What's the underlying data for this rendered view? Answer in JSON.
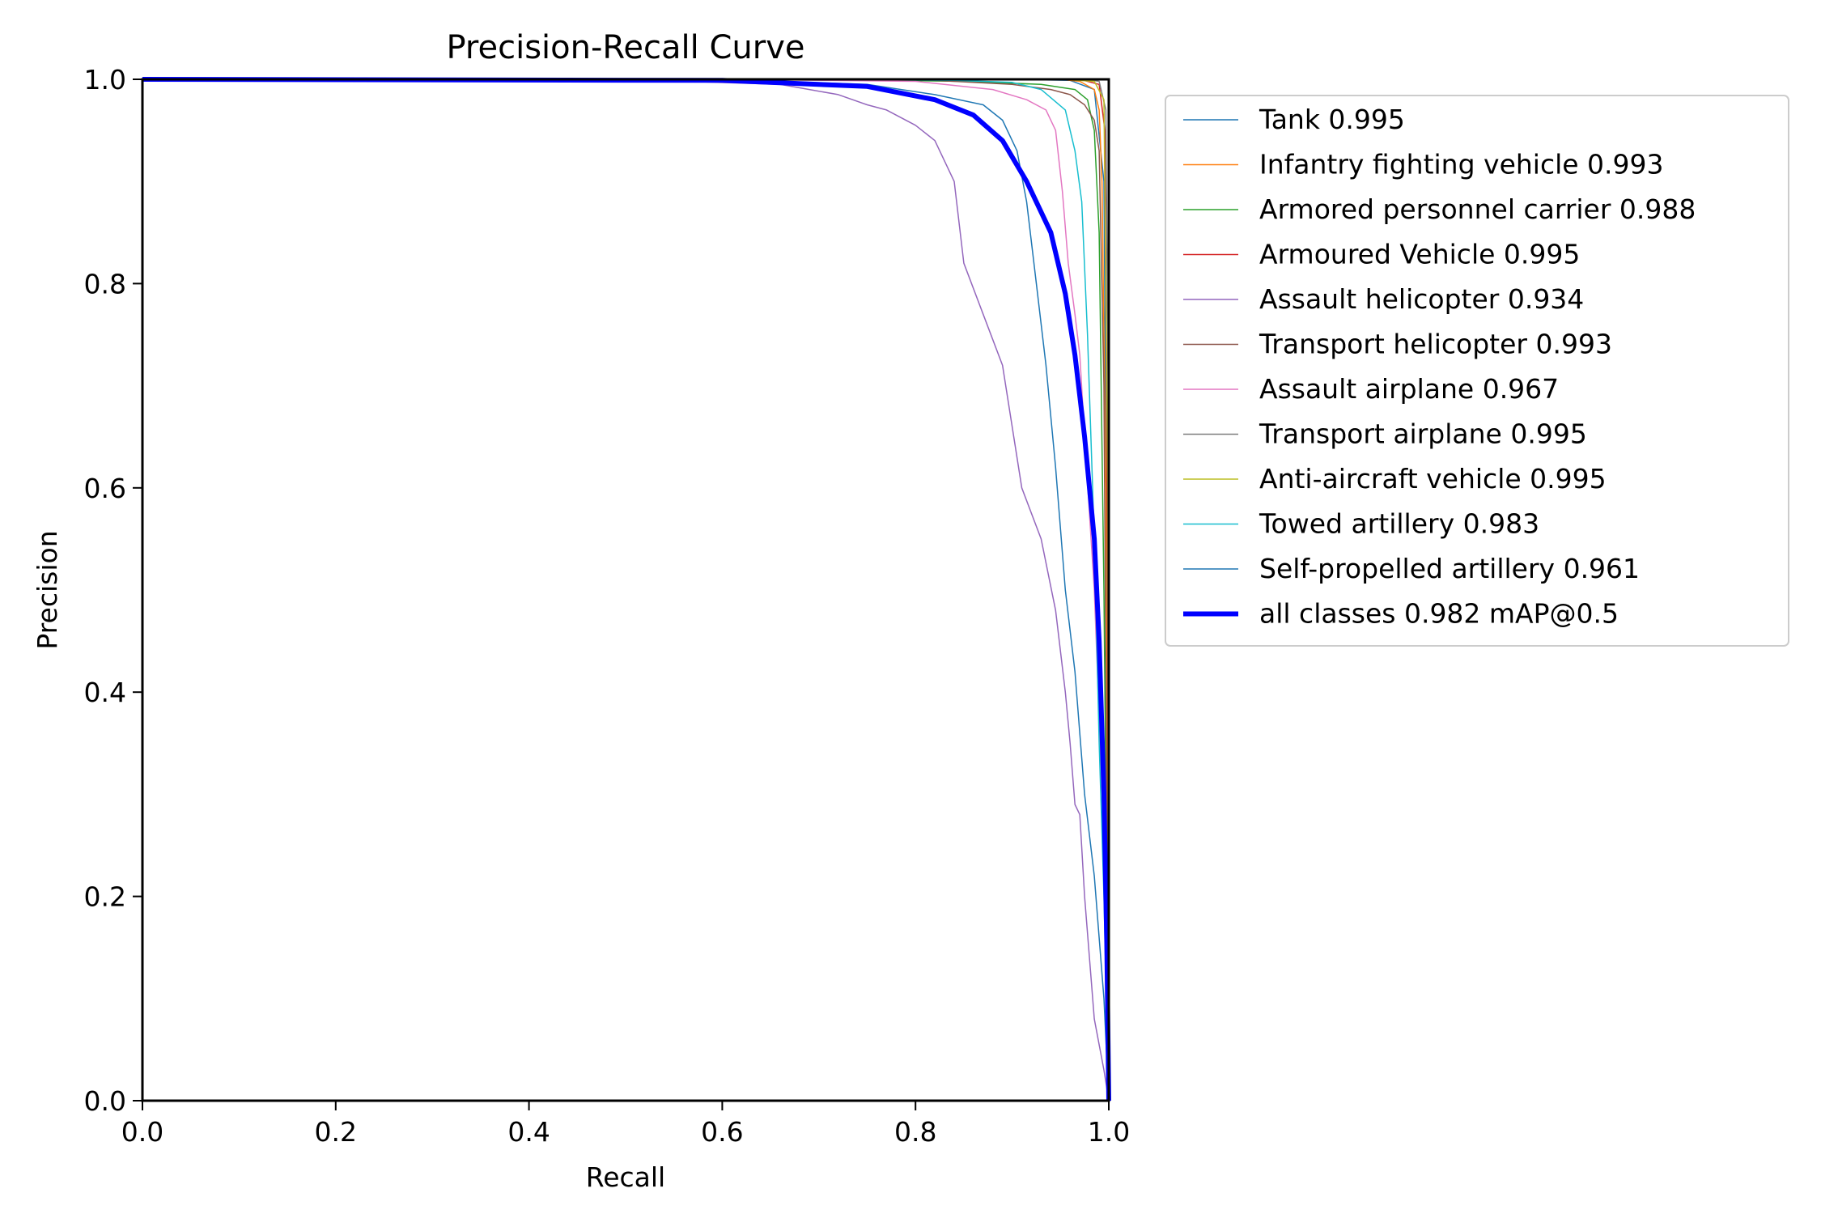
{
  "chart_data": {
    "type": "line",
    "title": "Precision-Recall Curve",
    "xlabel": "Recall",
    "ylabel": "Precision",
    "xlim": [
      0.0,
      1.0
    ],
    "ylim": [
      0.0,
      1.0
    ],
    "xticks": [
      "0.0",
      "0.2",
      "0.4",
      "0.6",
      "0.8",
      "1.0"
    ],
    "yticks": [
      "0.0",
      "0.2",
      "0.4",
      "0.6",
      "0.8",
      "1.0"
    ],
    "grid": false,
    "legend_position": "outside-right",
    "series": [
      {
        "name": "Tank 0.995",
        "color": "#1f77b4",
        "width": 1.5,
        "x": [
          0,
          0.6,
          0.9,
          0.96,
          0.985,
          0.995,
          0.999,
          1.0
        ],
        "y": [
          1.0,
          1.0,
          1.0,
          0.999,
          0.99,
          0.9,
          0.4,
          0.0
        ]
      },
      {
        "name": "Infantry fighting vehicle 0.993",
        "color": "#ff7f0e",
        "width": 1.5,
        "x": [
          0,
          0.7,
          0.95,
          0.97,
          0.985,
          0.99,
          0.993,
          0.997,
          1.0
        ],
        "y": [
          1.0,
          1.0,
          1.0,
          0.998,
          0.99,
          0.97,
          0.9,
          0.6,
          0.0
        ]
      },
      {
        "name": "Armored personnel carrier 0.988",
        "color": "#2ca02c",
        "width": 1.5,
        "x": [
          0,
          0.7,
          0.85,
          0.93,
          0.965,
          0.978,
          0.985,
          0.99,
          0.995,
          1.0
        ],
        "y": [
          1.0,
          1.0,
          0.998,
          0.995,
          0.99,
          0.98,
          0.95,
          0.85,
          0.5,
          0.0
        ]
      },
      {
        "name": "Armoured Vehicle 0.995",
        "color": "#d62728",
        "width": 1.5,
        "x": [
          0,
          0.9,
          0.97,
          0.99,
          0.996,
          0.999,
          1.0
        ],
        "y": [
          1.0,
          1.0,
          1.0,
          0.995,
          0.95,
          0.5,
          0.0
        ]
      },
      {
        "name": "Assault helicopter 0.934",
        "color": "#9467bd",
        "width": 1.5,
        "x": [
          0,
          0.5,
          0.66,
          0.72,
          0.75,
          0.77,
          0.8,
          0.82,
          0.84,
          0.85,
          0.87,
          0.89,
          0.91,
          0.93,
          0.945,
          0.955,
          0.96,
          0.965,
          0.97,
          0.975,
          0.985,
          0.995,
          1.0
        ],
        "y": [
          1.0,
          1.0,
          0.995,
          0.985,
          0.975,
          0.97,
          0.955,
          0.94,
          0.9,
          0.82,
          0.77,
          0.72,
          0.6,
          0.55,
          0.48,
          0.4,
          0.35,
          0.29,
          0.28,
          0.2,
          0.08,
          0.03,
          0.0
        ]
      },
      {
        "name": "Transport helicopter 0.993",
        "color": "#8c564b",
        "width": 1.5,
        "x": [
          0,
          0.8,
          0.9,
          0.94,
          0.96,
          0.975,
          0.985,
          0.99,
          0.995,
          1.0
        ],
        "y": [
          1.0,
          1.0,
          0.995,
          0.99,
          0.985,
          0.975,
          0.96,
          0.93,
          0.7,
          0.0
        ]
      },
      {
        "name": "Assault airplane 0.967",
        "color": "#e377c2",
        "width": 1.5,
        "x": [
          0,
          0.6,
          0.8,
          0.88,
          0.915,
          0.935,
          0.945,
          0.952,
          0.958,
          0.965,
          0.97,
          0.975,
          0.985,
          0.995,
          1.0
        ],
        "y": [
          1.0,
          1.0,
          0.998,
          0.99,
          0.98,
          0.97,
          0.95,
          0.89,
          0.82,
          0.77,
          0.73,
          0.65,
          0.5,
          0.25,
          0.0
        ]
      },
      {
        "name": "Transport airplane 0.995",
        "color": "#7f7f7f",
        "width": 1.5,
        "x": [
          0,
          0.9,
          0.975,
          0.99,
          0.997,
          1.0,
          1.0
        ],
        "y": [
          1.0,
          1.0,
          1.0,
          0.998,
          0.97,
          0.6,
          0.0
        ]
      },
      {
        "name": "Anti-aircraft vehicle 0.995",
        "color": "#bcbd22",
        "width": 1.5,
        "x": [
          0,
          0.95,
          0.985,
          0.995,
          0.999,
          1.0
        ],
        "y": [
          1.0,
          1.0,
          0.998,
          0.98,
          0.6,
          0.0
        ]
      },
      {
        "name": "Towed artillery 0.983",
        "color": "#17becf",
        "width": 1.5,
        "x": [
          0,
          0.7,
          0.84,
          0.9,
          0.93,
          0.955,
          0.965,
          0.972,
          0.978,
          0.985,
          0.99,
          0.995,
          1.0
        ],
        "y": [
          1.0,
          1.0,
          0.999,
          0.997,
          0.99,
          0.97,
          0.93,
          0.88,
          0.75,
          0.55,
          0.35,
          0.2,
          0.0
        ]
      },
      {
        "name": "Self-propelled artillery 0.961",
        "color": "#1f77b4",
        "width": 1.5,
        "x": [
          0,
          0.6,
          0.75,
          0.82,
          0.87,
          0.89,
          0.905,
          0.915,
          0.925,
          0.935,
          0.945,
          0.955,
          0.965,
          0.975,
          0.985,
          0.995,
          1.0
        ],
        "y": [
          1.0,
          1.0,
          0.995,
          0.985,
          0.975,
          0.96,
          0.93,
          0.88,
          0.8,
          0.72,
          0.62,
          0.5,
          0.42,
          0.3,
          0.22,
          0.1,
          0.0
        ]
      },
      {
        "name": "all classes 0.982 mAP@0.5",
        "color": "#0000ff",
        "width": 6,
        "x": [
          0,
          0.6,
          0.75,
          0.82,
          0.86,
          0.89,
          0.915,
          0.94,
          0.955,
          0.965,
          0.975,
          0.985,
          0.99,
          0.995,
          0.998,
          1.0
        ],
        "y": [
          1.0,
          0.999,
          0.993,
          0.98,
          0.965,
          0.94,
          0.9,
          0.85,
          0.79,
          0.73,
          0.65,
          0.55,
          0.45,
          0.3,
          0.15,
          0.0
        ]
      }
    ]
  }
}
